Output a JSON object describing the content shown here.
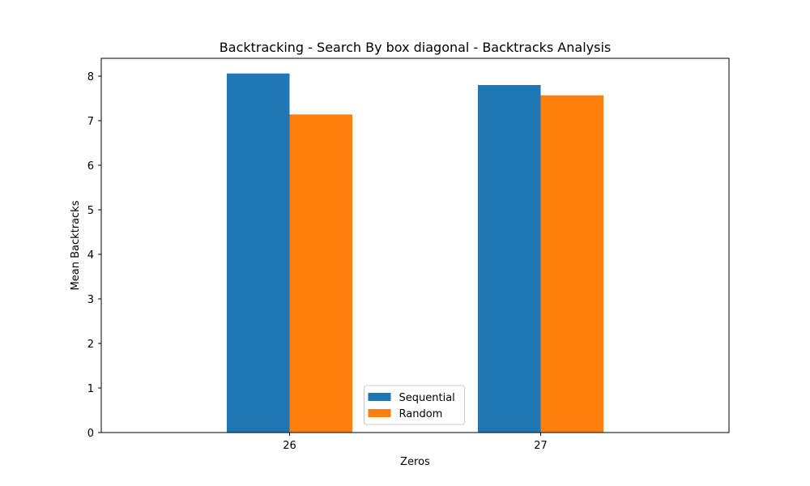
{
  "chart_data": {
    "type": "bar",
    "title": "Backtracking - Search By box diagonal - Backtracks Analysis",
    "xlabel": "Zeros",
    "ylabel": "Mean Backtracks",
    "categories": [
      "26",
      "27"
    ],
    "series": [
      {
        "name": "Sequential",
        "values": [
          8.06,
          7.8
        ],
        "color": "#1f77b4"
      },
      {
        "name": "Random",
        "values": [
          7.14,
          7.57
        ],
        "color": "#ff7f0e"
      }
    ],
    "ylim": [
      0,
      8.4
    ],
    "yticks": [
      0,
      1,
      2,
      3,
      4,
      5,
      6,
      7,
      8
    ],
    "grid": false,
    "legend": {
      "location": "lower center"
    }
  }
}
